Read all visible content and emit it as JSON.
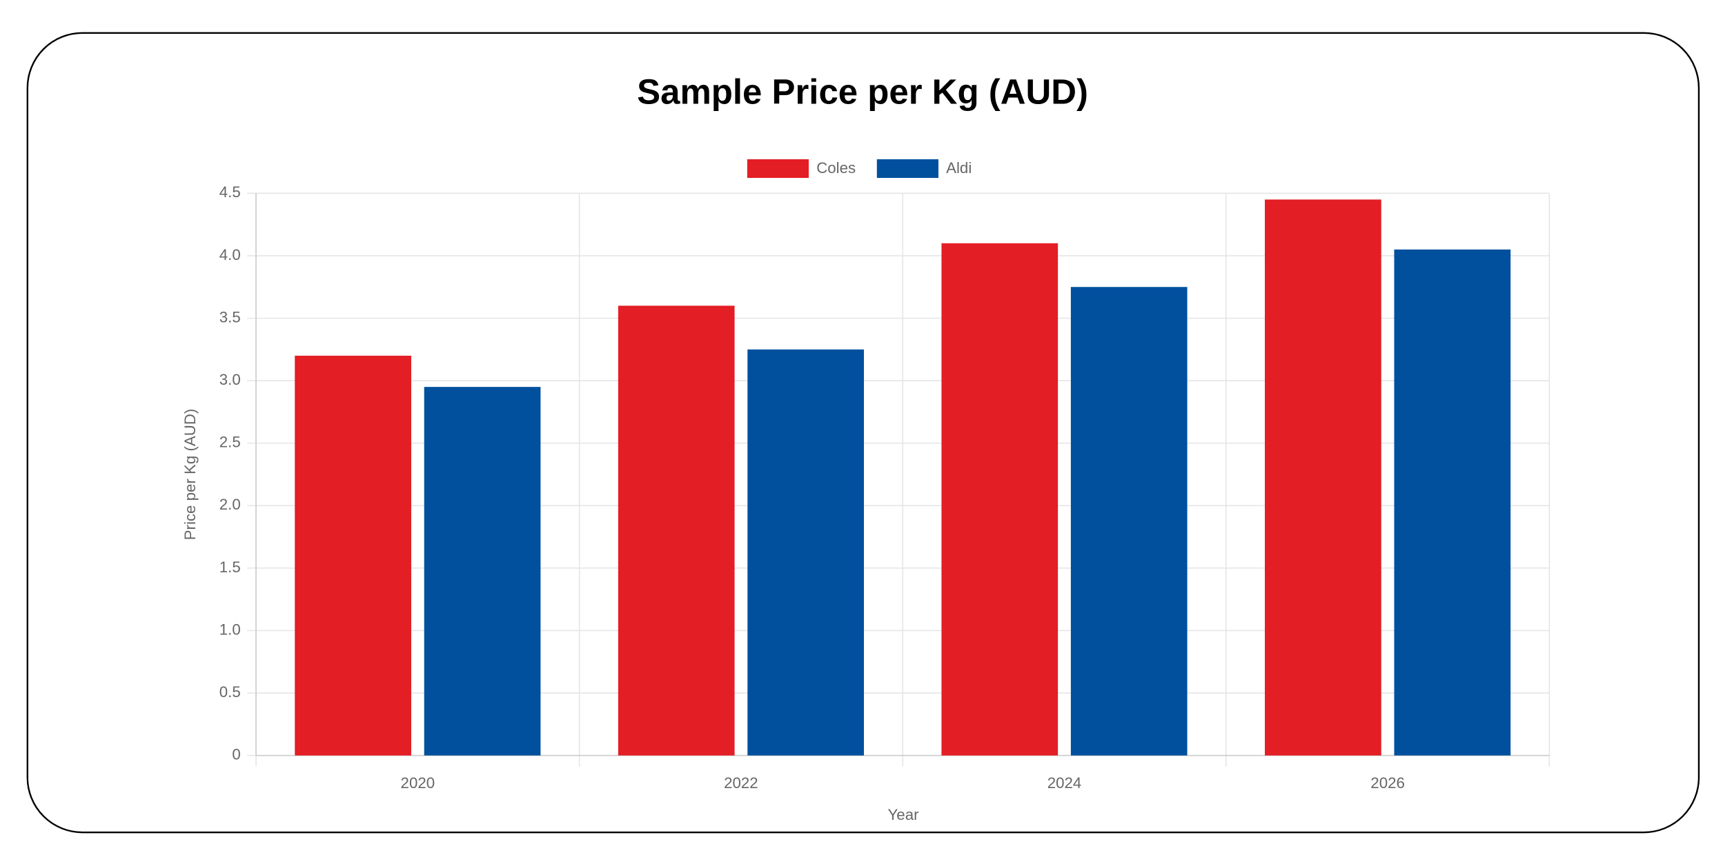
{
  "chart_data": {
    "type": "bar",
    "title": "Sample Price per Kg (AUD)",
    "x_label": "Year",
    "y_label": "Price per Kg (AUD)",
    "categories": [
      "2020",
      "2022",
      "2024",
      "2026"
    ],
    "series": [
      {
        "name": "Coles",
        "color": "#e31e24",
        "values": [
          3.2,
          3.6,
          4.1,
          4.45
        ]
      },
      {
        "name": "Aldi",
        "color": "#00509e",
        "values": [
          2.95,
          3.25,
          3.75,
          4.05
        ]
      }
    ],
    "ylim": [
      0,
      4.5
    ],
    "yticks": [
      0,
      0.5,
      {
        "value": 1,
        "label": "1.0"
      },
      1.5,
      {
        "value": 2,
        "label": "2.0"
      },
      2.5,
      {
        "value": 3,
        "label": "3.0"
      },
      3.5,
      {
        "value": 4,
        "label": "4.0"
      },
      4.5
    ],
    "grid": true,
    "legend": "top"
  }
}
